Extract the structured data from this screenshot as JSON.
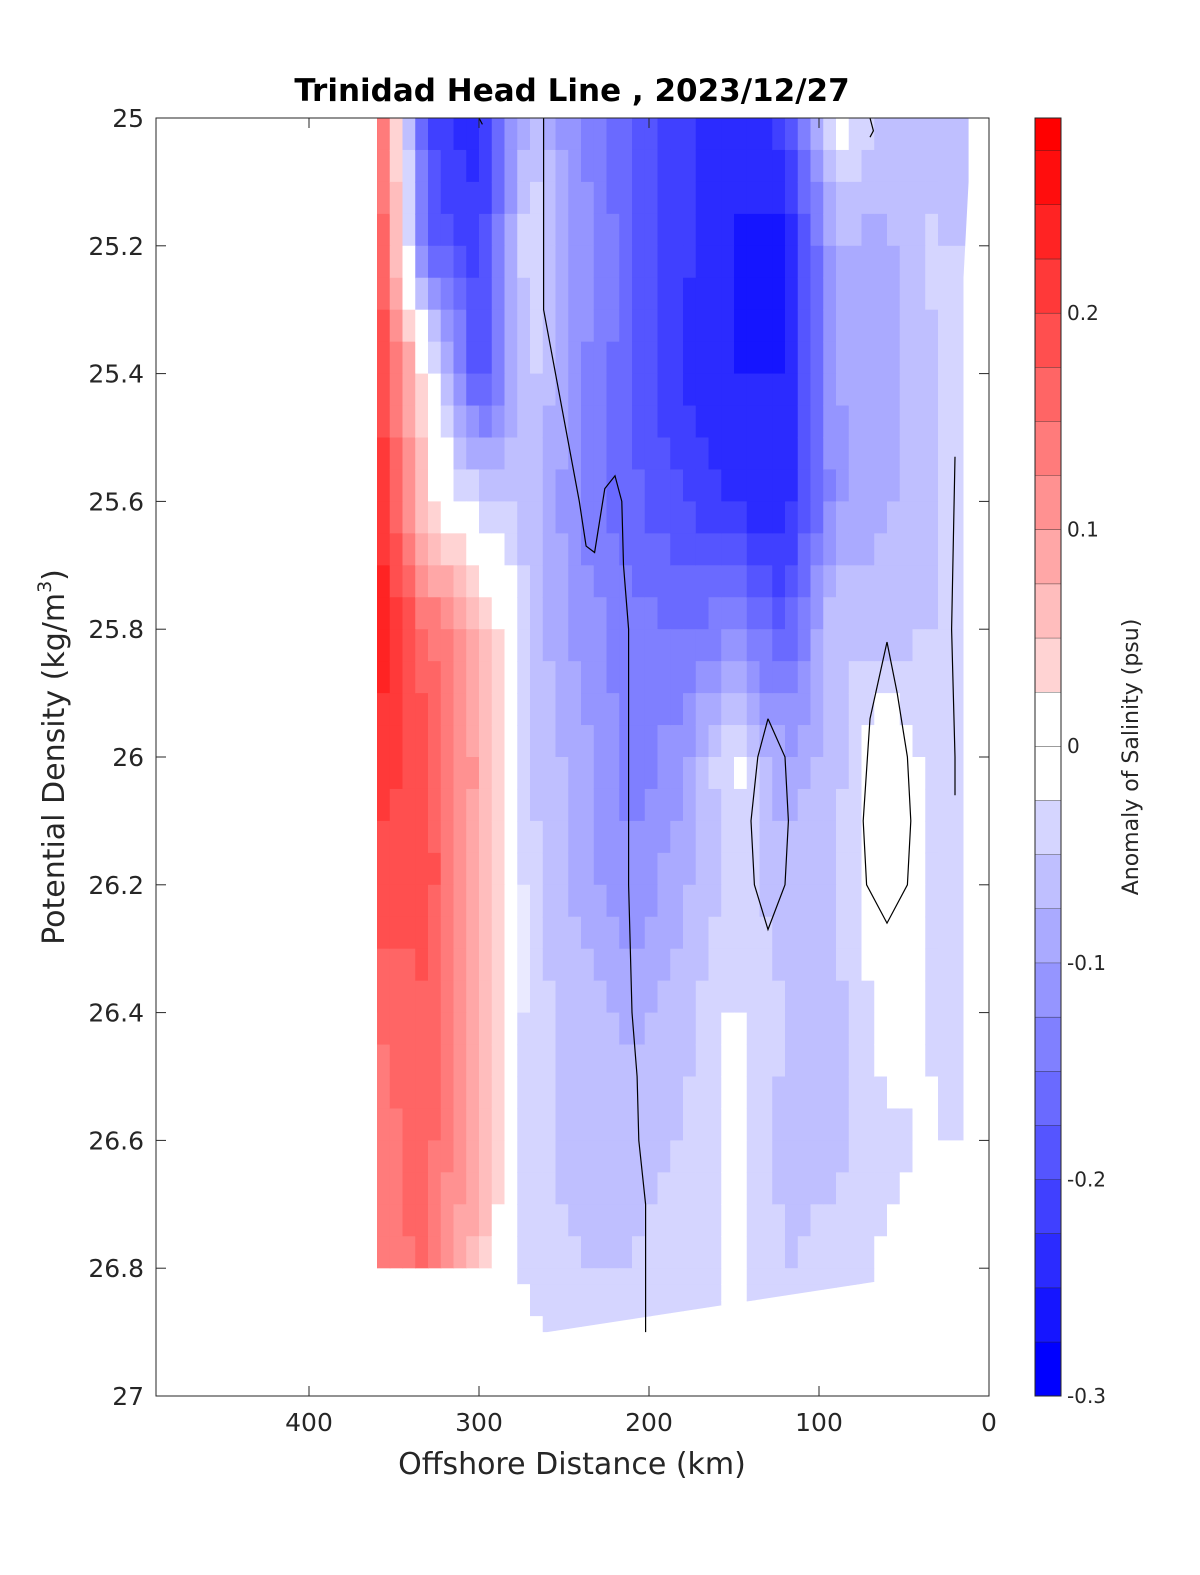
{
  "chart_data": {
    "type": "heatmap",
    "title": "Trinidad Head Line , 2023/12/27",
    "xlabel": "Offshore Distance (km)",
    "ylabel_main": "Potential Density (kg/m",
    "ylabel_sup": "3",
    "ylabel_end": ")",
    "xlim": [
      490,
      0
    ],
    "ylim": [
      25,
      27
    ],
    "x_reversed": true,
    "y_reversed": true,
    "x_ticks": [
      400,
      300,
      200,
      100,
      0
    ],
    "y_ticks": [
      25,
      25.2,
      25.4,
      25.6,
      25.8,
      26,
      26.2,
      26.4,
      26.6,
      26.8,
      27
    ],
    "x_tick_labels": [
      "400",
      "300",
      "200",
      "100",
      "0"
    ],
    "y_tick_labels": [
      "25",
      "25.2",
      "25.4",
      "25.6",
      "25.8",
      "26",
      "26.2",
      "26.4",
      "26.6",
      "26.8",
      "27"
    ],
    "colorbar": {
      "label": "Anomaly of Salinity (psu)",
      "min": -0.3,
      "max": 0.29,
      "ticks": [
        -0.3,
        -0.2,
        -0.1,
        0,
        0.1,
        0.2
      ],
      "tick_labels": [
        "-0.3",
        "-0.2",
        "-0.1",
        "0",
        "0.1",
        "0.2"
      ],
      "negative_color": "#0000ff",
      "zero_color": "#ffffff",
      "positive_color": "#ff0000"
    },
    "grid": false,
    "x_stations": [
      360,
      330,
      300,
      270,
      240,
      210,
      180,
      150,
      120,
      90,
      60,
      30
    ],
    "y_levels": [
      25,
      25.2,
      25.4,
      25.6,
      25.8,
      26,
      26.2,
      26.4,
      26.6,
      26.8,
      26.9
    ],
    "z_values": [
      [
        0.19,
        -0.21,
        -0.24,
        -0.06,
        -0.13,
        -0.18,
        -0.22,
        -0.25,
        -0.21,
        -0.01,
        -0.06,
        -0.06
      ],
      [
        0.2,
        -0.17,
        -0.22,
        -0.02,
        -0.11,
        -0.17,
        -0.22,
        -0.25,
        -0.27,
        -0.08,
        -0.08,
        -0.04
      ],
      [
        0.22,
        0.02,
        -0.2,
        -0.04,
        -0.12,
        -0.17,
        -0.23,
        -0.25,
        -0.25,
        -0.1,
        -0.09,
        -0.05
      ],
      [
        0.23,
        0.03,
        -0.04,
        -0.06,
        -0.13,
        -0.17,
        -0.2,
        -0.23,
        -0.25,
        -0.11,
        -0.08,
        -0.05
      ],
      [
        0.25,
        0.15,
        0.08,
        -0.06,
        -0.11,
        -0.14,
        -0.15,
        -0.13,
        -0.18,
        -0.05,
        -0.06,
        -0.05
      ],
      [
        0.22,
        0.18,
        0.09,
        -0.05,
        -0.09,
        -0.14,
        -0.11,
        -0.01,
        -0.1,
        -0.06,
        0.01,
        -0.04
      ],
      [
        0.19,
        0.19,
        0.08,
        -0.04,
        -0.09,
        -0.12,
        -0.08,
        -0.04,
        -0.06,
        -0.05,
        0.01,
        -0.04
      ],
      [
        0.15,
        0.17,
        0.08,
        -0.04,
        -0.06,
        -0.08,
        -0.06,
        -0.02,
        -0.05,
        -0.06,
        -0.01,
        -0.03
      ],
      [
        0.14,
        0.16,
        0.07,
        -0.04,
        -0.06,
        -0.06,
        -0.05,
        -0.02,
        -0.06,
        -0.06,
        -0.03,
        -0.02
      ],
      [
        0.13,
        0.16,
        0.06,
        -0.04,
        -0.05,
        -0.05,
        -0.04,
        -0.02,
        -0.05,
        -0.04,
        -0.02,
        -0.02
      ],
      [
        0.12,
        0.13,
        0.04,
        -0.02,
        -0.04,
        -0.04,
        -0.04,
        -0.02,
        -0.04,
        -0.03,
        -0.01,
        -0.01
      ]
    ],
    "zero_contours": [
      [
        [
          262,
          25.0
        ],
        [
          262,
          25.3
        ],
        [
          255,
          25.4
        ],
        [
          248,
          25.5
        ],
        [
          241,
          25.6
        ],
        [
          237,
          25.67
        ],
        [
          232,
          25.68
        ],
        [
          226,
          25.58
        ],
        [
          220,
          25.56
        ],
        [
          216,
          25.6
        ],
        [
          215,
          25.7
        ],
        [
          212,
          25.8
        ],
        [
          212,
          26.0
        ],
        [
          212,
          26.2
        ],
        [
          210,
          26.4
        ],
        [
          207,
          26.5
        ],
        [
          206,
          26.6
        ],
        [
          202,
          26.7
        ],
        [
          202,
          26.9
        ]
      ],
      [
        [
          130,
          25.94
        ],
        [
          120,
          26.0
        ],
        [
          118,
          26.1
        ],
        [
          120,
          26.2
        ],
        [
          130,
          26.27
        ],
        [
          138,
          26.2
        ],
        [
          140,
          26.1
        ],
        [
          136,
          26.0
        ],
        [
          130,
          25.94
        ]
      ],
      [
        [
          60,
          25.82
        ],
        [
          70,
          25.94
        ],
        [
          74,
          26.1
        ],
        [
          72,
          26.2
        ],
        [
          60,
          26.26
        ],
        [
          48,
          26.2
        ],
        [
          46,
          26.1
        ],
        [
          48,
          26.0
        ],
        [
          54,
          25.9
        ],
        [
          60,
          25.82
        ]
      ],
      [
        [
          20,
          25.53
        ],
        [
          22,
          25.8
        ],
        [
          20,
          26.0
        ],
        [
          20,
          26.06
        ]
      ],
      [
        [
          70,
          25.0
        ],
        [
          68,
          25.02
        ],
        [
          70,
          25.03
        ]
      ],
      [
        [
          300,
          25.0
        ],
        [
          298,
          25.01
        ]
      ]
    ]
  }
}
